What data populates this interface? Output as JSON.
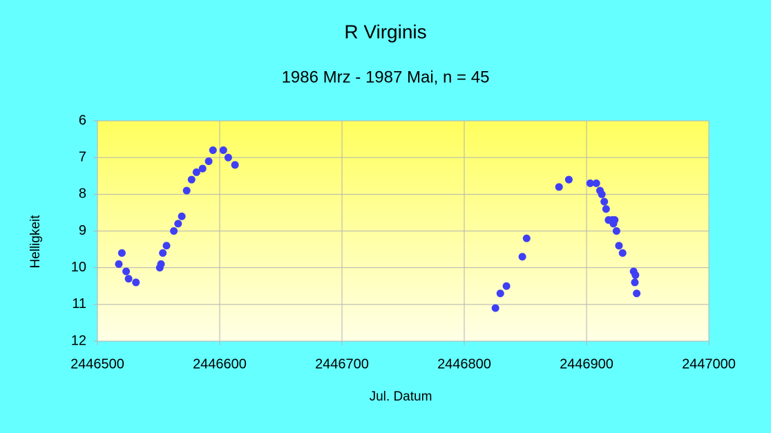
{
  "chart_data": {
    "type": "scatter",
    "title": "R Virginis",
    "subtitle": "1986 Mrz - 1987 Mai, n = 45",
    "x_label": "Jul. Datum",
    "y_label": "Helligkeit",
    "xlim": [
      2446500,
      2447000
    ],
    "xticks": [
      2446500,
      2446600,
      2446700,
      2446800,
      2446900,
      2447000
    ],
    "ylim": [
      6,
      12
    ],
    "yticks": [
      6,
      7,
      8,
      9,
      10,
      11,
      12
    ],
    "y_inverted": true,
    "grid": true,
    "series": [
      {
        "color": "#3f3ff5",
        "x": [
          2446517.5,
          2446520,
          2446523.5,
          2446525.5,
          2446531.5,
          2446551,
          2446552,
          2446553.5,
          2446556.5,
          2446562.5,
          2446566,
          2446569,
          2446573,
          2446577,
          2446581,
          2446586,
          2446591,
          2446594.5,
          2446603,
          2446607,
          2446612.5,
          2446825.5,
          2446829.5,
          2446834.5,
          2446847.5,
          2446851,
          2446877.5,
          2446885.5,
          2446903,
          2446908,
          2446911,
          2446912.5,
          2446914.5,
          2446916,
          2446918,
          2446921,
          2446923,
          2446922,
          2446924.5,
          2446926.5,
          2446929.5,
          2446938.5,
          2446940,
          2446939.5,
          2446941
        ],
        "values": [
          9.9,
          9.6,
          10.1,
          10.3,
          10.4,
          10.0,
          9.9,
          9.6,
          9.4,
          9.0,
          8.8,
          8.6,
          7.9,
          7.6,
          7.4,
          7.3,
          7.1,
          6.8,
          6.8,
          7.0,
          7.2,
          11.1,
          10.7,
          10.5,
          9.7,
          9.2,
          7.8,
          7.6,
          7.7,
          7.7,
          7.9,
          8.0,
          8.2,
          8.4,
          8.7,
          8.7,
          8.7,
          8.8,
          9.0,
          9.4,
          9.6,
          10.1,
          10.2,
          10.4,
          10.7
        ]
      }
    ]
  }
}
